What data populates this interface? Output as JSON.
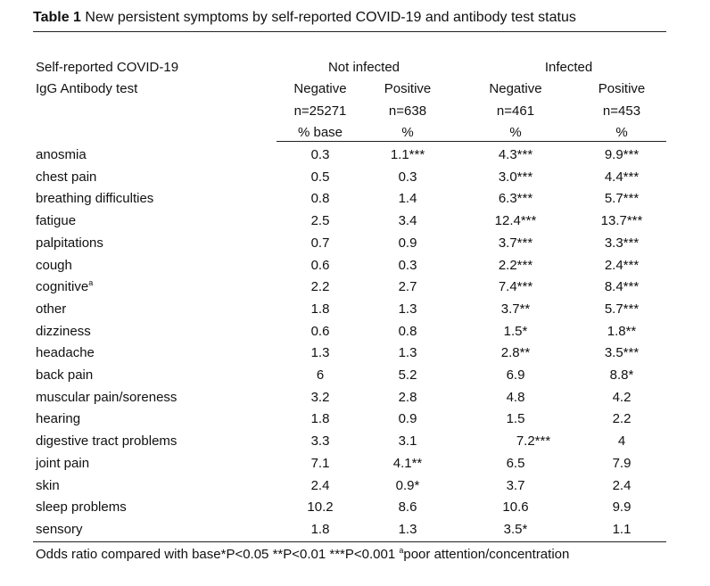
{
  "caption": {
    "label": "Table 1",
    "text": " New persistent symptoms by self-reported COVID-19 and antibody test status"
  },
  "header": {
    "row_label_line1": "Self-reported COVID-19",
    "row_label_line2": "IgG Antibody test",
    "group_not_infected": "Not infected",
    "group_infected": "Infected",
    "columns": [
      {
        "result": "Negative",
        "n": "n=25271",
        "unit": "% base"
      },
      {
        "result": "Positive",
        "n": "n=638",
        "unit": "%"
      },
      {
        "result": "Negative",
        "n": "n=461",
        "unit": "%"
      },
      {
        "result": "Positive",
        "n": "n=453",
        "unit": "%"
      }
    ]
  },
  "rows": [
    {
      "label": "anosmia",
      "sup": "",
      "values": [
        "0.3",
        "1.1***",
        "4.3***",
        "9.9***"
      ]
    },
    {
      "label": "chest pain",
      "sup": "",
      "values": [
        "0.5",
        "0.3",
        "3.0***",
        "4.4***"
      ]
    },
    {
      "label": "breathing difficulties",
      "sup": "",
      "values": [
        "0.8",
        "1.4",
        "6.3***",
        "5.7***"
      ]
    },
    {
      "label": "fatigue",
      "sup": "",
      "values": [
        "2.5",
        "3.4",
        "12.4***",
        "13.7***"
      ]
    },
    {
      "label": "palpitations",
      "sup": "",
      "values": [
        "0.7",
        "0.9",
        "3.7***",
        "3.3***"
      ]
    },
    {
      "label": "cough",
      "sup": "",
      "values": [
        "0.6",
        "0.3",
        "2.2***",
        "2.4***"
      ]
    },
    {
      "label": "cognitive",
      "sup": "a",
      "values": [
        "2.2",
        "2.7",
        "7.4***",
        "8.4***"
      ]
    },
    {
      "label": "other",
      "sup": "",
      "values": [
        "1.8",
        "1.3",
        "3.7**",
        "5.7***"
      ]
    },
    {
      "label": "dizziness",
      "sup": "",
      "values": [
        "0.6",
        "0.8",
        "1.5*",
        "1.8**"
      ]
    },
    {
      "label": "headache",
      "sup": "",
      "values": [
        "1.3",
        "1.3",
        "2.8**",
        "3.5***"
      ]
    },
    {
      "label": "back pain",
      "sup": "",
      "values": [
        "6",
        "5.2",
        "6.9",
        "8.8*"
      ]
    },
    {
      "label": "muscular pain/soreness",
      "sup": "",
      "values": [
        "3.2",
        "2.8",
        "4.8",
        "4.2"
      ]
    },
    {
      "label": "hearing",
      "sup": "",
      "values": [
        "1.8",
        "0.9",
        "1.5",
        "2.2"
      ]
    },
    {
      "label": "digestive tract problems",
      "sup": "",
      "values": [
        "3.3",
        "3.1",
        "7.2***",
        "4"
      ]
    },
    {
      "label": "joint pain",
      "sup": "",
      "values": [
        "7.1",
        "4.1**",
        "6.5",
        "7.9"
      ]
    },
    {
      "label": "skin",
      "sup": "",
      "values": [
        "2.4",
        "0.9*",
        "3.7",
        "2.4"
      ]
    },
    {
      "label": "sleep problems",
      "sup": "",
      "values": [
        "10.2",
        "8.6",
        "10.6",
        "9.9"
      ]
    },
    {
      "label": "sensory",
      "sup": "",
      "values": [
        "1.8",
        "1.3",
        "3.5*",
        "1.1"
      ]
    }
  ],
  "footnote": {
    "text": "Odds ratio compared with base*P<0.05 **P<0.01 ***P<0.001  ",
    "sup": "a",
    "text2": "poor attention/concentration"
  }
}
